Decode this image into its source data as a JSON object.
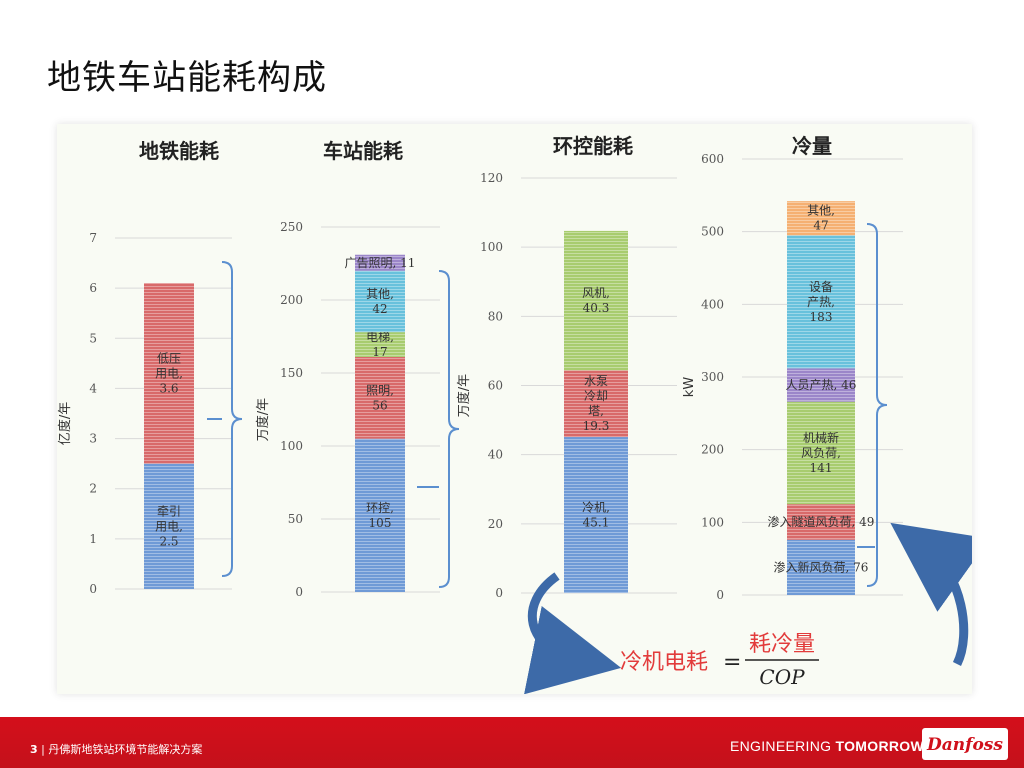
{
  "slide": {
    "title": "地铁车站能耗构成",
    "page_number": "3",
    "footer_title": "丹佛斯地铁站环境节能解决方案",
    "tagline_left": "ENGINEERING ",
    "tagline_right": "TOMORROW",
    "logo_text": "Danfoss"
  },
  "colors": {
    "blue": "#6f9ad6",
    "red": "#d86a6a",
    "green": "#a8cc6f",
    "teal": "#68c1dc",
    "purple": "#9b86c9",
    "orange": "#f5b072",
    "bracket": "#5b8fcf",
    "formula_red": "#e23b3b",
    "footer_red": "#c8101b"
  },
  "formula": {
    "lhs": "冷机电耗",
    "equals": "=",
    "numerator": "耗冷量",
    "denominator": "COP"
  },
  "chart_data": [
    {
      "type": "bar",
      "title": "地铁能耗",
      "ylabel": "亿度/年",
      "ylim": [
        0,
        7
      ],
      "yticks": [
        0,
        1,
        2,
        3,
        4,
        5,
        6,
        7
      ],
      "segments": [
        {
          "lines": [
            "牵引",
            "用电,",
            "2.5"
          ],
          "value": 2.5,
          "color": "blue"
        },
        {
          "lines": [
            "低压",
            "用电,",
            "3.6"
          ],
          "value": 3.6,
          "color": "red"
        }
      ]
    },
    {
      "type": "bar",
      "title": "车站能耗",
      "ylabel": "万度/年",
      "ylim": [
        0,
        250
      ],
      "yticks": [
        0,
        50,
        100,
        150,
        200,
        250
      ],
      "segments": [
        {
          "lines": [
            "环控,",
            "105"
          ],
          "value": 105,
          "color": "blue"
        },
        {
          "lines": [
            "照明,",
            "56"
          ],
          "value": 56,
          "color": "red"
        },
        {
          "lines": [
            "电梯,",
            "17"
          ],
          "value": 17,
          "color": "green"
        },
        {
          "lines": [
            "其他,",
            "42"
          ],
          "value": 42,
          "color": "teal"
        },
        {
          "lines": [
            "广告照明, 11"
          ],
          "value": 11,
          "color": "purple"
        }
      ]
    },
    {
      "type": "bar",
      "title": "环控能耗",
      "ylabel": "万度/年",
      "ylim": [
        0,
        120
      ],
      "yticks": [
        0,
        20,
        40,
        60,
        80,
        100,
        120
      ],
      "segments": [
        {
          "lines": [
            "冷机,",
            "45.1"
          ],
          "value": 45.1,
          "color": "blue"
        },
        {
          "lines": [
            "水泵",
            "冷却",
            "塔,",
            "19.3"
          ],
          "value": 19.3,
          "color": "red"
        },
        {
          "lines": [
            "风机,",
            "40.3"
          ],
          "value": 40.3,
          "color": "green"
        }
      ]
    },
    {
      "type": "bar",
      "title": "冷量",
      "ylabel": "kW",
      "ylim": [
        0,
        600
      ],
      "yticks": [
        0,
        100,
        200,
        300,
        400,
        500,
        600
      ],
      "segments": [
        {
          "lines": [
            "渗入新风负荷, 76"
          ],
          "value": 76,
          "color": "blue"
        },
        {
          "lines": [
            "渗入隧道风负荷, 49"
          ],
          "value": 49,
          "color": "red"
        },
        {
          "lines": [
            "机械新",
            "风负荷,",
            "141"
          ],
          "value": 141,
          "color": "green"
        },
        {
          "lines": [
            "人员产热, 46"
          ],
          "value": 46,
          "color": "purple"
        },
        {
          "lines": [
            "设备",
            "产热,",
            "183"
          ],
          "value": 183,
          "color": "teal"
        },
        {
          "lines": [
            "其他,",
            "47"
          ],
          "value": 47,
          "color": "orange"
        }
      ]
    }
  ]
}
